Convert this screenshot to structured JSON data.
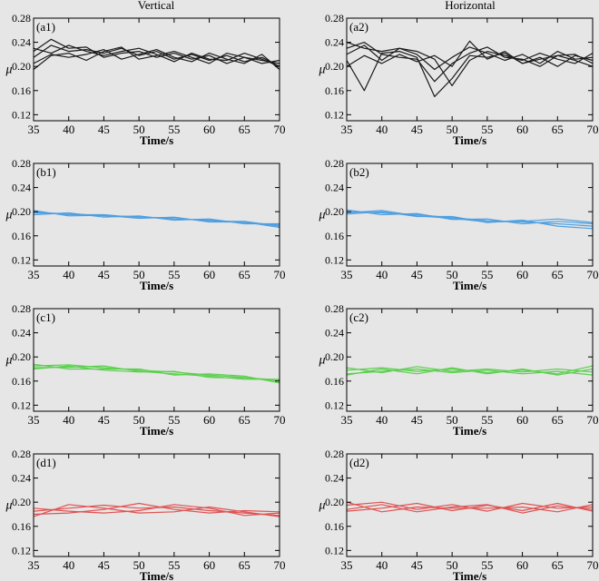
{
  "figure": {
    "column_titles": [
      "Vertical",
      "Horizontal"
    ]
  },
  "chart_data": [
    {
      "panel": "(a1)",
      "type": "line",
      "column": "Vertical",
      "color": "#1a1a1a",
      "xlabel": "Time/s",
      "ylabel": "μ",
      "xlim": [
        35,
        70
      ],
      "ylim": [
        0.11,
        0.28
      ],
      "xticks": [
        35,
        40,
        45,
        50,
        55,
        60,
        65,
        70
      ],
      "yticks": [
        0.12,
        0.16,
        0.2,
        0.24,
        0.28
      ],
      "series": [
        {
          "x": [
            35,
            37.5,
            40,
            42.5,
            45,
            47.5,
            50,
            52.5,
            55,
            57.5,
            60,
            62.5,
            65,
            67.5,
            70
          ],
          "y": [
            0.215,
            0.235,
            0.225,
            0.228,
            0.222,
            0.23,
            0.218,
            0.225,
            0.212,
            0.22,
            0.21,
            0.218,
            0.208,
            0.215,
            0.2
          ]
        },
        {
          "x": [
            35,
            37.5,
            40,
            42.5,
            45,
            47.5,
            50,
            52.5,
            55,
            57.5,
            60,
            62.5,
            65,
            67.5,
            70
          ],
          "y": [
            0.225,
            0.245,
            0.23,
            0.232,
            0.215,
            0.222,
            0.225,
            0.215,
            0.222,
            0.212,
            0.218,
            0.205,
            0.215,
            0.21,
            0.205
          ]
        },
        {
          "x": [
            35,
            37.5,
            40,
            42.5,
            45,
            47.5,
            50,
            52.5,
            55,
            57.5,
            60,
            62.5,
            65,
            67.5,
            70
          ],
          "y": [
            0.205,
            0.22,
            0.215,
            0.22,
            0.228,
            0.212,
            0.22,
            0.228,
            0.215,
            0.208,
            0.222,
            0.212,
            0.205,
            0.22,
            0.195
          ]
        },
        {
          "x": [
            35,
            37.5,
            40,
            42.5,
            45,
            47.5,
            50,
            52.5,
            55,
            57.5,
            60,
            62.5,
            65,
            67.5,
            70
          ],
          "y": [
            0.195,
            0.218,
            0.222,
            0.21,
            0.225,
            0.232,
            0.212,
            0.218,
            0.225,
            0.215,
            0.205,
            0.222,
            0.215,
            0.205,
            0.21
          ]
        },
        {
          "x": [
            35,
            37.5,
            40,
            42.5,
            45,
            47.5,
            50,
            52.5,
            55,
            57.5,
            60,
            62.5,
            65,
            67.5,
            70
          ],
          "y": [
            0.23,
            0.222,
            0.235,
            0.225,
            0.218,
            0.225,
            0.23,
            0.22,
            0.208,
            0.222,
            0.212,
            0.21,
            0.222,
            0.212,
            0.2
          ]
        }
      ]
    },
    {
      "panel": "(a2)",
      "type": "line",
      "column": "Horizontal",
      "color": "#1a1a1a",
      "xlabel": "Time/s",
      "ylabel": "μ",
      "xlim": [
        35,
        70
      ],
      "ylim": [
        0.11,
        0.28
      ],
      "xticks": [
        35,
        40,
        45,
        50,
        55,
        60,
        65,
        70
      ],
      "yticks": [
        0.12,
        0.16,
        0.2,
        0.24,
        0.28
      ],
      "series": [
        {
          "x": [
            35,
            37.5,
            40,
            42.5,
            45,
            47.5,
            50,
            52.5,
            55,
            57.5,
            60,
            62.5,
            65,
            67.5,
            70
          ],
          "y": [
            0.23,
            0.24,
            0.22,
            0.215,
            0.212,
            0.175,
            0.205,
            0.222,
            0.232,
            0.215,
            0.212,
            0.2,
            0.218,
            0.21,
            0.2
          ]
        },
        {
          "x": [
            35,
            37.5,
            40,
            42.5,
            45,
            47.5,
            50,
            52.5,
            55,
            57.5,
            60,
            62.5,
            65,
            67.5,
            70
          ],
          "y": [
            0.21,
            0.16,
            0.222,
            0.225,
            0.215,
            0.15,
            0.18,
            0.218,
            0.215,
            0.222,
            0.205,
            0.215,
            0.2,
            0.218,
            0.21
          ]
        },
        {
          "x": [
            35,
            37.5,
            40,
            42.5,
            45,
            47.5,
            50,
            52.5,
            55,
            57.5,
            60,
            62.5,
            65,
            67.5,
            70
          ],
          "y": [
            0.24,
            0.23,
            0.225,
            0.23,
            0.22,
            0.195,
            0.215,
            0.232,
            0.222,
            0.21,
            0.22,
            0.205,
            0.225,
            0.212,
            0.215
          ]
        },
        {
          "x": [
            35,
            37.5,
            40,
            42.5,
            45,
            47.5,
            50,
            52.5,
            55,
            57.5,
            60,
            62.5,
            65,
            67.5,
            70
          ],
          "y": [
            0.22,
            0.235,
            0.21,
            0.23,
            0.225,
            0.212,
            0.168,
            0.21,
            0.225,
            0.218,
            0.21,
            0.222,
            0.212,
            0.205,
            0.222
          ]
        },
        {
          "x": [
            35,
            37.5,
            40,
            42.5,
            45,
            47.5,
            50,
            52.5,
            55,
            57.5,
            60,
            62.5,
            65,
            67.5,
            70
          ],
          "y": [
            0.2,
            0.218,
            0.205,
            0.22,
            0.208,
            0.218,
            0.2,
            0.242,
            0.212,
            0.225,
            0.205,
            0.212,
            0.218,
            0.22,
            0.205
          ]
        }
      ]
    },
    {
      "panel": "(b1)",
      "type": "line",
      "column": "Vertical",
      "color": "#4f9fe0",
      "xlabel": "Time/s",
      "ylabel": "μ",
      "xlim": [
        35,
        70
      ],
      "ylim": [
        0.11,
        0.28
      ],
      "xticks": [
        35,
        40,
        45,
        50,
        55,
        60,
        65,
        70
      ],
      "yticks": [
        0.12,
        0.16,
        0.2,
        0.24,
        0.28
      ],
      "series": [
        {
          "x": [
            35,
            40,
            45,
            50,
            55,
            60,
            65,
            70
          ],
          "y": [
            0.198,
            0.197,
            0.193,
            0.192,
            0.188,
            0.186,
            0.182,
            0.178
          ]
        },
        {
          "x": [
            35,
            40,
            45,
            50,
            55,
            60,
            65,
            70
          ],
          "y": [
            0.2,
            0.195,
            0.195,
            0.19,
            0.19,
            0.184,
            0.184,
            0.176
          ]
        },
        {
          "x": [
            35,
            40,
            45,
            50,
            55,
            60,
            65,
            70
          ],
          "y": [
            0.195,
            0.198,
            0.191,
            0.193,
            0.186,
            0.188,
            0.18,
            0.18
          ]
        },
        {
          "x": [
            35,
            40,
            45,
            50,
            55,
            60,
            65,
            70
          ],
          "y": [
            0.202,
            0.193,
            0.194,
            0.189,
            0.191,
            0.183,
            0.183,
            0.174
          ]
        }
      ]
    },
    {
      "panel": "(b2)",
      "type": "line",
      "column": "Horizontal",
      "color": "#4f9fe0",
      "xlabel": "Time/s",
      "ylabel": "μ",
      "xlim": [
        35,
        70
      ],
      "ylim": [
        0.11,
        0.28
      ],
      "xticks": [
        35,
        40,
        45,
        50,
        55,
        60,
        65,
        70
      ],
      "yticks": [
        0.12,
        0.16,
        0.2,
        0.24,
        0.28
      ],
      "series": [
        {
          "x": [
            35,
            40,
            45,
            50,
            55,
            60,
            65,
            70
          ],
          "y": [
            0.2,
            0.198,
            0.195,
            0.19,
            0.185,
            0.183,
            0.18,
            0.176
          ]
        },
        {
          "x": [
            35,
            40,
            45,
            50,
            55,
            60,
            65,
            70
          ],
          "y": [
            0.196,
            0.2,
            0.192,
            0.192,
            0.182,
            0.186,
            0.176,
            0.172
          ]
        },
        {
          "x": [
            35,
            40,
            45,
            50,
            55,
            60,
            65,
            70
          ],
          "y": [
            0.203,
            0.195,
            0.197,
            0.187,
            0.188,
            0.18,
            0.184,
            0.18
          ]
        },
        {
          "x": [
            35,
            40,
            45,
            50,
            55,
            60,
            65,
            70
          ],
          "y": [
            0.198,
            0.202,
            0.193,
            0.189,
            0.183,
            0.184,
            0.188,
            0.182
          ]
        }
      ]
    },
    {
      "panel": "(c1)",
      "type": "line",
      "column": "Vertical",
      "color": "#5ccf4f",
      "xlabel": "Time/s",
      "ylabel": "μ",
      "xlim": [
        35,
        70
      ],
      "ylim": [
        0.11,
        0.28
      ],
      "xticks": [
        35,
        40,
        45,
        50,
        55,
        60,
        65,
        70
      ],
      "yticks": [
        0.12,
        0.16,
        0.2,
        0.24,
        0.28
      ],
      "series": [
        {
          "x": [
            35,
            40,
            45,
            50,
            55,
            60,
            65,
            70
          ],
          "y": [
            0.185,
            0.187,
            0.182,
            0.178,
            0.175,
            0.17,
            0.166,
            0.16
          ]
        },
        {
          "x": [
            35,
            40,
            45,
            50,
            55,
            60,
            65,
            70
          ],
          "y": [
            0.182,
            0.183,
            0.185,
            0.176,
            0.172,
            0.168,
            0.163,
            0.163
          ]
        },
        {
          "x": [
            35,
            40,
            45,
            50,
            55,
            60,
            65,
            70
          ],
          "y": [
            0.188,
            0.18,
            0.18,
            0.18,
            0.17,
            0.172,
            0.168,
            0.157
          ]
        },
        {
          "x": [
            35,
            40,
            45,
            50,
            55,
            60,
            65,
            70
          ],
          "y": [
            0.18,
            0.185,
            0.178,
            0.175,
            0.176,
            0.166,
            0.165,
            0.162
          ]
        }
      ]
    },
    {
      "panel": "(c2)",
      "type": "line",
      "column": "Horizontal",
      "color": "#5ccf4f",
      "xlabel": "Time/s",
      "ylabel": "μ",
      "xlim": [
        35,
        70
      ],
      "ylim": [
        0.11,
        0.28
      ],
      "xticks": [
        35,
        40,
        45,
        50,
        55,
        60,
        65,
        70
      ],
      "yticks": [
        0.12,
        0.16,
        0.2,
        0.24,
        0.28
      ],
      "series": [
        {
          "x": [
            35,
            40,
            45,
            50,
            55,
            60,
            65,
            70
          ],
          "y": [
            0.178,
            0.182,
            0.176,
            0.18,
            0.174,
            0.178,
            0.172,
            0.185
          ]
        },
        {
          "x": [
            35,
            40,
            45,
            50,
            55,
            60,
            65,
            70
          ],
          "y": [
            0.172,
            0.176,
            0.18,
            0.174,
            0.178,
            0.172,
            0.176,
            0.17
          ]
        },
        {
          "x": [
            35,
            40,
            45,
            50,
            55,
            60,
            65,
            70
          ],
          "y": [
            0.182,
            0.174,
            0.184,
            0.176,
            0.18,
            0.175,
            0.18,
            0.175
          ]
        },
        {
          "x": [
            35,
            40,
            45,
            50,
            55,
            60,
            65,
            70
          ],
          "y": [
            0.17,
            0.18,
            0.172,
            0.182,
            0.172,
            0.18,
            0.17,
            0.18
          ]
        }
      ]
    },
    {
      "panel": "(d1)",
      "type": "line",
      "column": "Vertical",
      "color": "#e05252",
      "xlabel": "Time/s",
      "ylabel": "μ",
      "xlim": [
        35,
        70
      ],
      "ylim": [
        0.11,
        0.28
      ],
      "xticks": [
        35,
        40,
        45,
        50,
        55,
        60,
        65,
        70
      ],
      "yticks": [
        0.12,
        0.16,
        0.2,
        0.24,
        0.28
      ],
      "series": [
        {
          "x": [
            35,
            40,
            45,
            50,
            55,
            60,
            65,
            70
          ],
          "y": [
            0.185,
            0.19,
            0.195,
            0.19,
            0.192,
            0.186,
            0.182,
            0.178
          ]
        },
        {
          "x": [
            35,
            40,
            45,
            50,
            55,
            60,
            65,
            70
          ],
          "y": [
            0.18,
            0.182,
            0.188,
            0.198,
            0.188,
            0.182,
            0.186,
            0.184
          ]
        },
        {
          "x": [
            35,
            40,
            45,
            50,
            55,
            60,
            65,
            70
          ],
          "y": [
            0.19,
            0.185,
            0.182,
            0.186,
            0.196,
            0.19,
            0.178,
            0.182
          ]
        },
        {
          "x": [
            35,
            40,
            45,
            50,
            55,
            60,
            65,
            70
          ],
          "y": [
            0.176,
            0.196,
            0.19,
            0.182,
            0.184,
            0.192,
            0.184,
            0.176
          ]
        }
      ]
    },
    {
      "panel": "(d2)",
      "type": "line",
      "column": "Horizontal",
      "color": "#e05252",
      "xlabel": "Time/s",
      "ylabel": "μ",
      "xlim": [
        35,
        70
      ],
      "ylim": [
        0.11,
        0.28
      ],
      "xticks": [
        35,
        40,
        45,
        50,
        55,
        60,
        65,
        70
      ],
      "yticks": [
        0.12,
        0.16,
        0.2,
        0.24,
        0.28
      ],
      "series": [
        {
          "x": [
            35,
            40,
            45,
            50,
            55,
            60,
            65,
            70
          ],
          "y": [
            0.195,
            0.2,
            0.188,
            0.196,
            0.185,
            0.198,
            0.19,
            0.192
          ]
        },
        {
          "x": [
            35,
            40,
            45,
            50,
            55,
            60,
            65,
            70
          ],
          "y": [
            0.185,
            0.19,
            0.198,
            0.186,
            0.195,
            0.186,
            0.198,
            0.185
          ]
        },
        {
          "x": [
            35,
            40,
            45,
            50,
            55,
            60,
            65,
            70
          ],
          "y": [
            0.2,
            0.184,
            0.192,
            0.19,
            0.19,
            0.192,
            0.184,
            0.196
          ]
        },
        {
          "x": [
            35,
            40,
            45,
            50,
            55,
            60,
            65,
            70
          ],
          "y": [
            0.188,
            0.196,
            0.184,
            0.192,
            0.196,
            0.182,
            0.194,
            0.188
          ]
        }
      ]
    }
  ]
}
